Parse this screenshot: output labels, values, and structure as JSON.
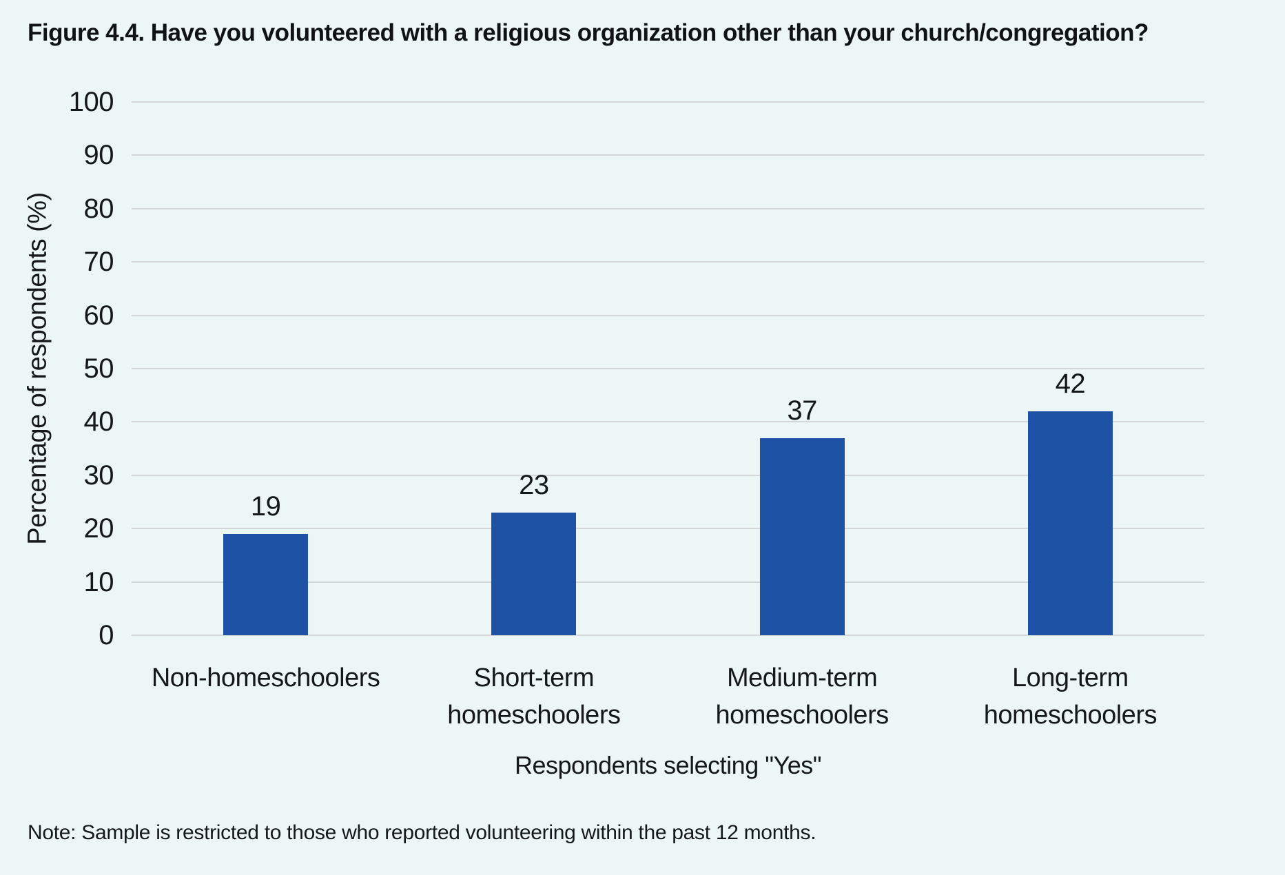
{
  "note": "Note: Sample is restricted to those who reported volunteering within the past 12 months.",
  "colors": {
    "background": "#ecf7f5",
    "bar": "#1d52a5",
    "gridline": "#d3d7d7",
    "text": "#15181b"
  },
  "chart_data": {
    "type": "bar",
    "title": "Figure 4.4. Have you volunteered with a religious organization other than your church/congregation?",
    "categories": [
      "Non-homeschoolers",
      "Short-term\nhomeschoolers",
      "Medium-term\nhomeschoolers",
      "Long-term\nhomeschoolers"
    ],
    "values": [
      19,
      23,
      37,
      42
    ],
    "bar_labels": [
      "19",
      "23",
      "37",
      "42"
    ],
    "xlabel": "Respondents selecting \"Yes\"",
    "ylabel": "Percentage of respondents (%)",
    "ylim": [
      0,
      100
    ],
    "yticks": [
      0,
      10,
      20,
      30,
      40,
      50,
      60,
      70,
      80,
      90,
      100
    ],
    "grid": "horizontal",
    "legend": "none"
  }
}
